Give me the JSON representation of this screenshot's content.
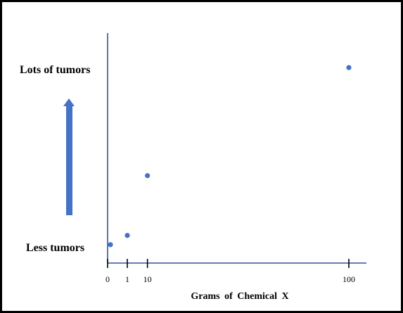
{
  "chart_data": {
    "type": "scatter",
    "title": "",
    "xlabel": "Grams  of  Chemical  X",
    "ylabel_top": "Lots of tumors",
    "ylabel_bottom": "Less tumors",
    "x_ticks": [
      {
        "value": 0,
        "label": "0"
      },
      {
        "value": 1,
        "label": "1"
      },
      {
        "value": 10,
        "label": "10"
      },
      {
        "value": 100,
        "label": "100"
      }
    ],
    "xlim": [
      0,
      110
    ],
    "ylim": [
      0,
      1
    ],
    "points": [
      {
        "x": 0,
        "y": 0.08
      },
      {
        "x": 1,
        "y": 0.12
      },
      {
        "x": 10,
        "y": 0.38
      },
      {
        "x": 100,
        "y": 0.85
      }
    ],
    "arrow_direction": "up",
    "grid": false,
    "legend": "none"
  },
  "colors": {
    "point": "#4472c4",
    "axis": "#2f5597",
    "arrow": "#4472c4",
    "frame": "#000000"
  }
}
